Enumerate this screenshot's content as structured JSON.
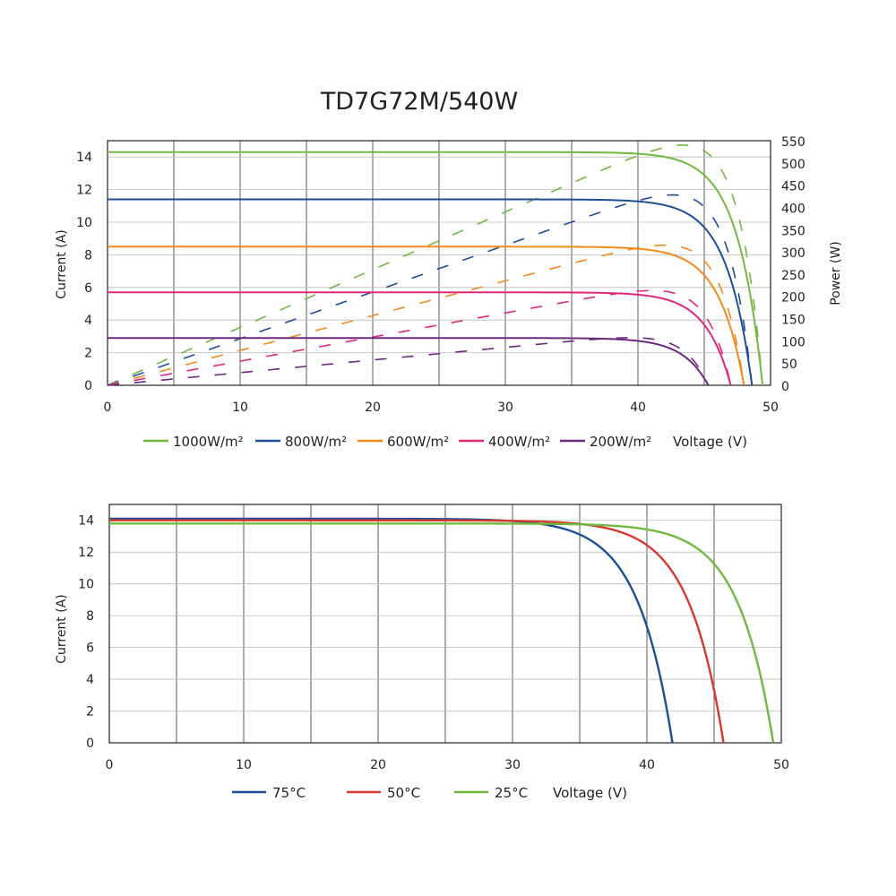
{
  "chart_data": [
    {
      "type": "line",
      "title": "TD7G72M/540W",
      "xlabel": "Voltage (V)",
      "ylabel": "Current (A)",
      "y2label": "Power (W)",
      "xlim": [
        0,
        50
      ],
      "ylim": [
        0,
        15
      ],
      "y2lim": [
        0,
        550
      ],
      "xticks": [
        0,
        10,
        20,
        30,
        40,
        50
      ],
      "yticks": [
        0,
        2,
        4,
        6,
        8,
        10,
        12,
        14
      ],
      "y2ticks": [
        0,
        50,
        100,
        150,
        200,
        250,
        300,
        350,
        400,
        450,
        500,
        550
      ],
      "grid": true,
      "legend_position": "bottom",
      "series": [
        {
          "name": "1000W/m²",
          "color": "#72b843",
          "isc": 14.3,
          "voc": 49.4,
          "pmax": 540,
          "vmp": 41.6
        },
        {
          "name": "800W/m²",
          "color": "#1f4e96",
          "isc": 11.4,
          "voc": 48.6,
          "pmax": 428,
          "vmp": 41.4
        },
        {
          "name": "600W/m²",
          "color": "#f08a1d",
          "isc": 8.5,
          "voc": 48.0,
          "pmax": 315,
          "vmp": 40.8
        },
        {
          "name": "400W/m²",
          "color": "#e0287a",
          "isc": 5.7,
          "voc": 47.0,
          "pmax": 213,
          "vmp": 40.6
        },
        {
          "name": "200W/m²",
          "color": "#6b2a7d",
          "isc": 2.9,
          "voc": 45.3,
          "pmax": 107,
          "vmp": 39.5
        }
      ]
    },
    {
      "type": "line",
      "xlabel": "Voltage (V)",
      "ylabel": "Current (A)",
      "xlim": [
        0,
        50
      ],
      "ylim": [
        0,
        15
      ],
      "xticks": [
        0,
        10,
        20,
        30,
        40,
        50
      ],
      "yticks": [
        0,
        2,
        4,
        6,
        8,
        10,
        12,
        14
      ],
      "grid": true,
      "legend_position": "bottom",
      "series": [
        {
          "name": "75°C",
          "color": "#1f4e96",
          "isc": 14.1,
          "voc": 41.9
        },
        {
          "name": "50°C",
          "color": "#d63a2e",
          "isc": 14.0,
          "voc": 45.7
        },
        {
          "name": "25°C",
          "color": "#72b843",
          "isc": 13.8,
          "voc": 49.4
        }
      ]
    }
  ]
}
